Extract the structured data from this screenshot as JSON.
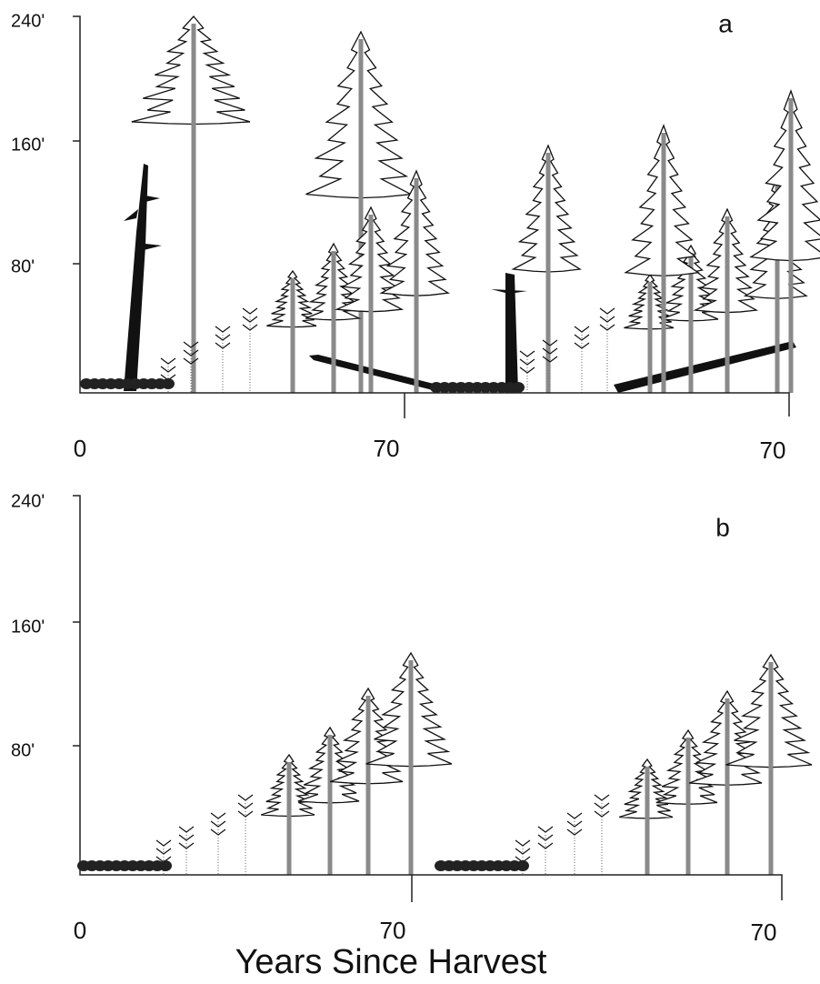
{
  "panels": [
    {
      "label": "a",
      "yticks": [
        "240'",
        "160'",
        "80'"
      ],
      "xticks": [
        "0",
        "70",
        "70"
      ]
    },
    {
      "label": "b",
      "yticks": [
        "240'",
        "160'",
        "80'"
      ],
      "xticks": [
        "0",
        "70",
        "70"
      ]
    }
  ],
  "x_axis_title": "Years Since Harvest"
}
